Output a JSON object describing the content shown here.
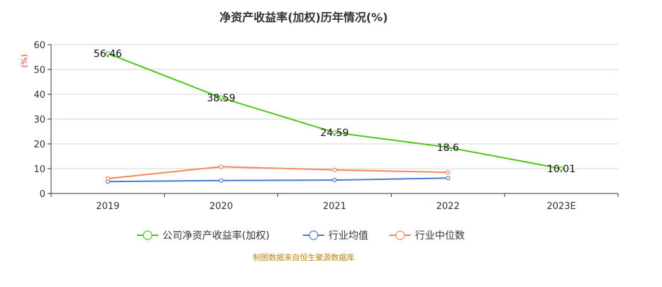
{
  "chart_data": {
    "type": "line",
    "title": "净资产收益率(加权)历年情况(%)",
    "y_unit_label": "(%)",
    "categories": [
      "2019",
      "2020",
      "2021",
      "2022",
      "2023E"
    ],
    "ylim": [
      0,
      60
    ],
    "yticks": [
      0,
      10,
      20,
      30,
      40,
      50,
      60
    ],
    "grid": true,
    "legend_position": "bottom",
    "series": [
      {
        "name": "公司净资产收益率(加权)",
        "color": "#52c41a",
        "values": [
          56.46,
          38.59,
          24.59,
          18.6,
          10.01
        ],
        "labels": [
          "56.46",
          "38.59",
          "24.59",
          "18.6",
          "10.01"
        ]
      },
      {
        "name": "行业均值",
        "color": "#4a7bd0",
        "values": [
          4.8,
          5.2,
          5.4,
          6.2,
          null
        ]
      },
      {
        "name": "行业中位数",
        "color": "#f4875a",
        "values": [
          6.0,
          10.8,
          9.5,
          8.5,
          null
        ]
      }
    ],
    "source": "制图数据来自恒生聚源数据库"
  }
}
